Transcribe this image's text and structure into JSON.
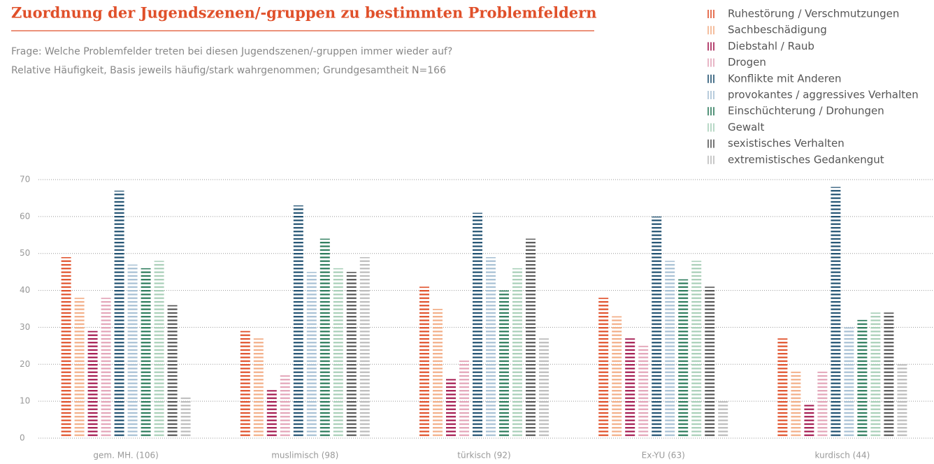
{
  "chart_data": {
    "type": "bar",
    "title": "Zuordnung der Jugendszenen/-gruppen zu bestimmten Problemfeldern",
    "subtitle": [
      "Frage: Welche Problemfelder treten bei diesen Jugendszenen/-gruppen immer wieder auf?",
      "Relative Häufigkeit, Basis jeweils häufig/stark wahrgenommen; Grundgesamtheit N=166"
    ],
    "categories": [
      "gem. MH. (106)",
      "muslimisch (98)",
      "türkisch (92)",
      "Ex-YU (63)",
      "kurdisch (44)"
    ],
    "series": [
      {
        "name": "Ruhestörung / Verschmutzungen",
        "color": "#e0502a",
        "values": [
          49,
          29,
          41,
          38,
          27
        ]
      },
      {
        "name": "Sachbeschädigung",
        "color": "#f2ad86",
        "values": [
          38,
          27,
          35,
          33,
          18
        ]
      },
      {
        "name": "Diebstahl / Raub",
        "color": "#a3174e",
        "values": [
          29,
          13,
          16,
          27,
          9
        ]
      },
      {
        "name": "Drogen",
        "color": "#e2a3b7",
        "values": [
          38,
          17,
          21,
          25,
          18
        ]
      },
      {
        "name": "Konflikte mit Anderen",
        "color": "#1f5070",
        "values": [
          67,
          63,
          61,
          60,
          68
        ]
      },
      {
        "name": "provokantes / aggressives Verhalten",
        "color": "#a6bfd3",
        "values": [
          47,
          45,
          49,
          48,
          30
        ]
      },
      {
        "name": "Einschüchterung / Drohungen",
        "color": "#2a7a5a",
        "values": [
          46,
          54,
          40,
          43,
          32
        ]
      },
      {
        "name": "Gewalt",
        "color": "#a7ceb7",
        "values": [
          48,
          46,
          46,
          48,
          34
        ]
      },
      {
        "name": "sexistisches Verhalten",
        "color": "#555555",
        "values": [
          36,
          45,
          54,
          41,
          34
        ]
      },
      {
        "name": "extremistisches Gedankengut",
        "color": "#bbbbbb",
        "values": [
          11,
          49,
          27,
          10,
          20
        ]
      }
    ],
    "ylim": [
      0,
      70
    ],
    "yticks": [
      0,
      10,
      20,
      30,
      40,
      50,
      60,
      70
    ],
    "grid": true,
    "legend": "top-right"
  }
}
